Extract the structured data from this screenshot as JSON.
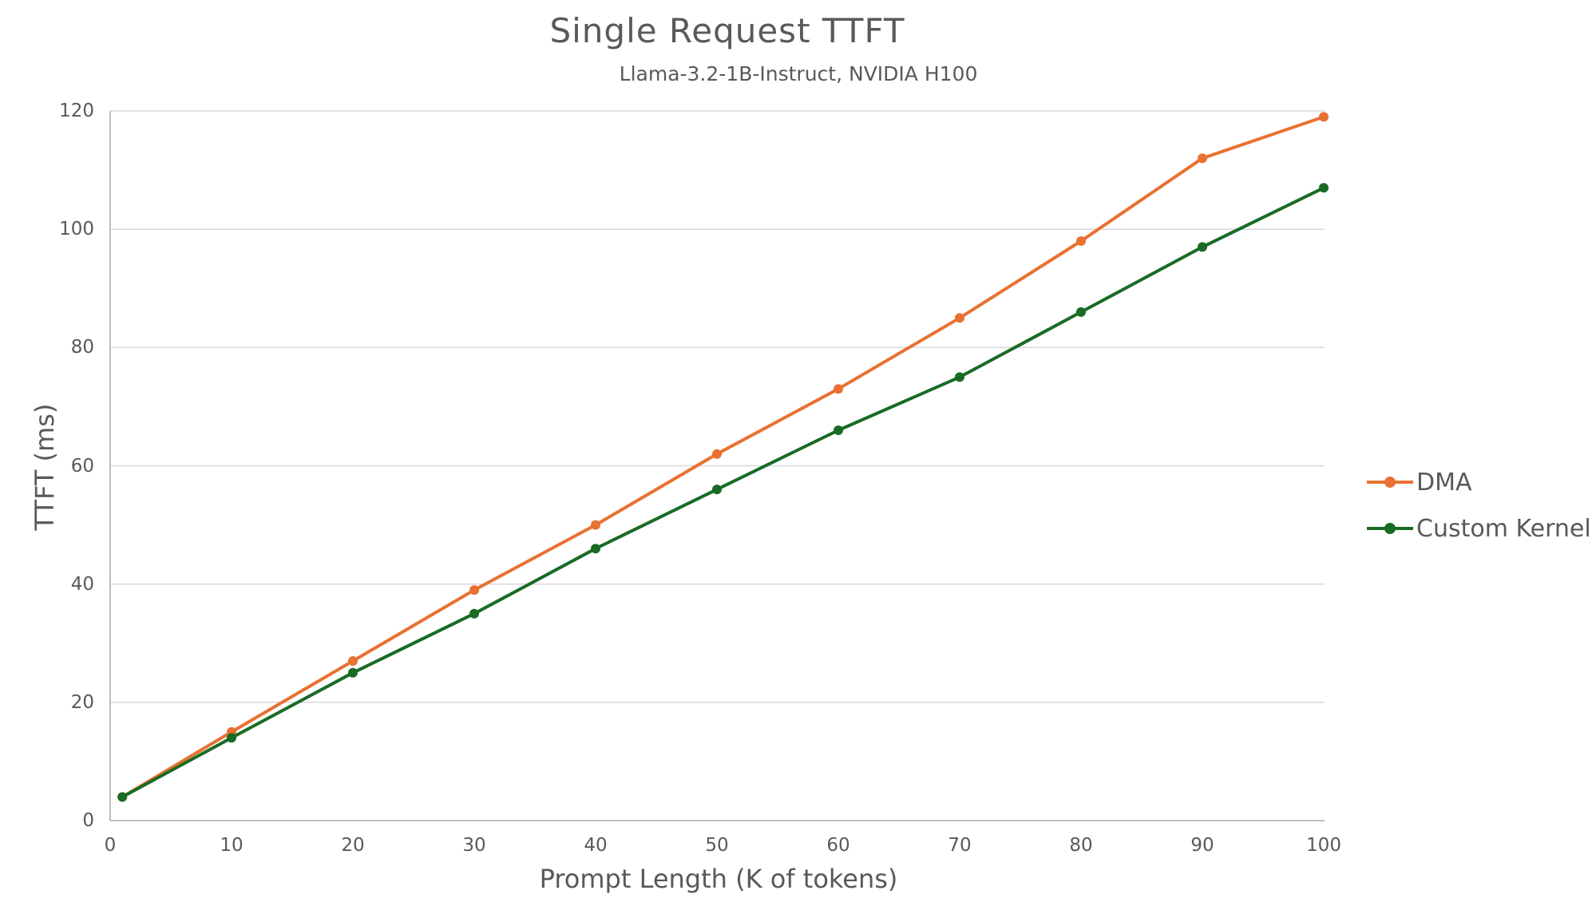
{
  "chart_data": {
    "type": "line",
    "title": "Single Request TTFT",
    "subtitle": "Llama-3.2-1B-Instruct, NVIDIA H100",
    "xlabel": "Prompt Length (K of tokens)",
    "ylabel": "TTFT (ms)",
    "x": [
      1,
      10,
      20,
      30,
      40,
      50,
      60,
      70,
      80,
      90,
      100
    ],
    "series": [
      {
        "name": "DMA",
        "color": "#E97132",
        "values": [
          4,
          15,
          27,
          39,
          50,
          62,
          73,
          85,
          98,
          112,
          119
        ]
      },
      {
        "name": "Custom Kernel",
        "color": "#196B24",
        "values": [
          4,
          14,
          25,
          35,
          46,
          56,
          66,
          75,
          86,
          97,
          107
        ]
      }
    ],
    "xlim": [
      0,
      100
    ],
    "ylim": [
      0,
      120
    ],
    "x_ticks": [
      0,
      10,
      20,
      30,
      40,
      50,
      60,
      70,
      80,
      90,
      100
    ],
    "y_ticks": [
      0,
      20,
      40,
      60,
      80,
      100,
      120
    ],
    "grid": "horizontal",
    "legend_position": "right"
  },
  "style": {
    "text_color": "#595959",
    "gridline_color": "#D9D9D9",
    "axis_color": "#BFBFBF",
    "background_color": "#FFFFFF",
    "marker": "circle"
  }
}
